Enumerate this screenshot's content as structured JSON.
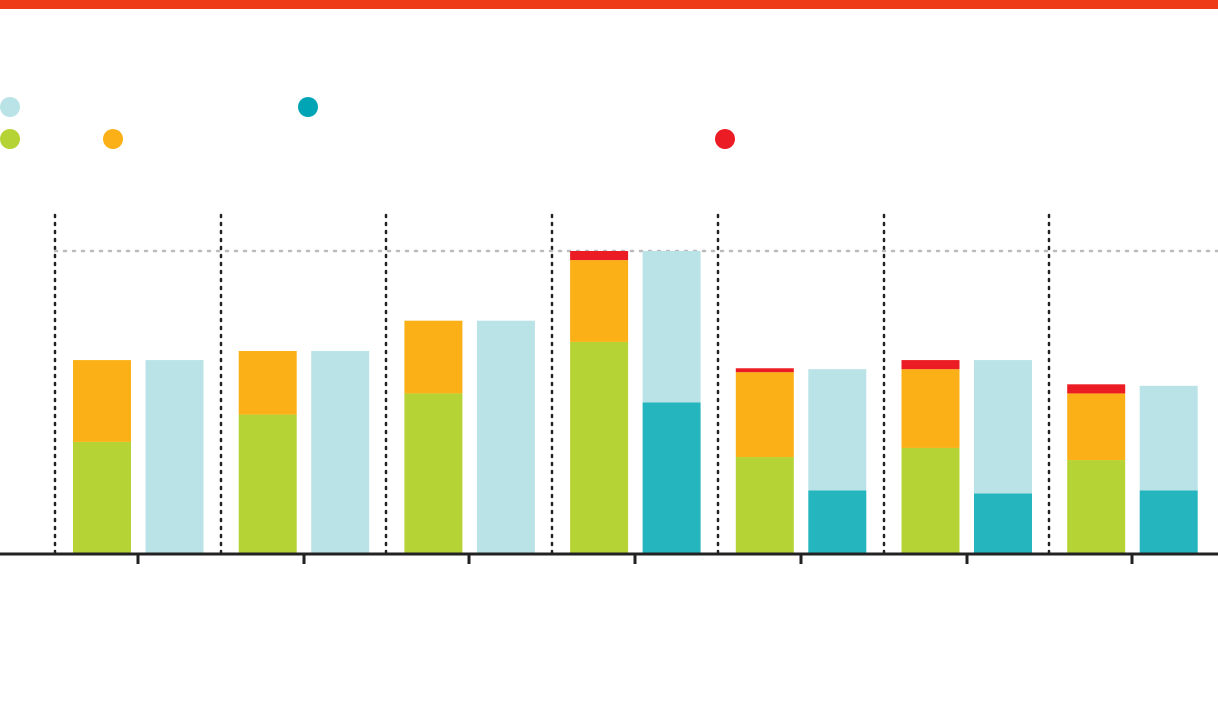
{
  "colors": {
    "brand_bar": "#ee3a16",
    "green": "#b5d334",
    "orange": "#fbb017",
    "red": "#ec1c24",
    "light_blue": "#bae3e7",
    "teal": "#24b5bf",
    "legend_teal": "#00a5b5",
    "axis": "#222222",
    "guide": "#bbbbbb"
  },
  "legend": {
    "rows": [
      [
        {
          "color": "light_blue",
          "icon": "light-blue-dot-icon"
        },
        {
          "color": "legend_teal",
          "icon": "teal-dot-icon"
        }
      ],
      [
        {
          "color": "green",
          "icon": "green-dot-icon"
        },
        {
          "color": "orange",
          "icon": "orange-dot-icon"
        },
        {
          "color": "red",
          "icon": "red-dot-icon"
        }
      ]
    ]
  },
  "chart_data": {
    "type": "bar",
    "stacked": true,
    "grouped": true,
    "groups": 7,
    "ylim": [
      0,
      100
    ],
    "reference_line": 100,
    "title": "",
    "xlabel": "",
    "ylabel": "",
    "tick_labels": [],
    "left_bars": [
      {
        "green": 37,
        "orange": 27,
        "red": 0
      },
      {
        "green": 46,
        "orange": 21,
        "red": 0
      },
      {
        "green": 53,
        "orange": 24,
        "red": 0
      },
      {
        "green": 70,
        "orange": 27,
        "red": 3
      },
      {
        "green": 32,
        "orange": 28,
        "red": 1.3
      },
      {
        "green": 35,
        "orange": 26,
        "red": 3
      },
      {
        "green": 31,
        "orange": 22,
        "red": 3
      }
    ],
    "right_bars": [
      {
        "teal": 0,
        "light_blue": 64
      },
      {
        "teal": 0,
        "light_blue": 67
      },
      {
        "teal": 0,
        "light_blue": 77
      },
      {
        "teal": 50,
        "light_blue": 50
      },
      {
        "teal": 21,
        "light_blue": 40
      },
      {
        "teal": 20,
        "light_blue": 44
      },
      {
        "teal": 21,
        "light_blue": 34.5
      }
    ]
  }
}
